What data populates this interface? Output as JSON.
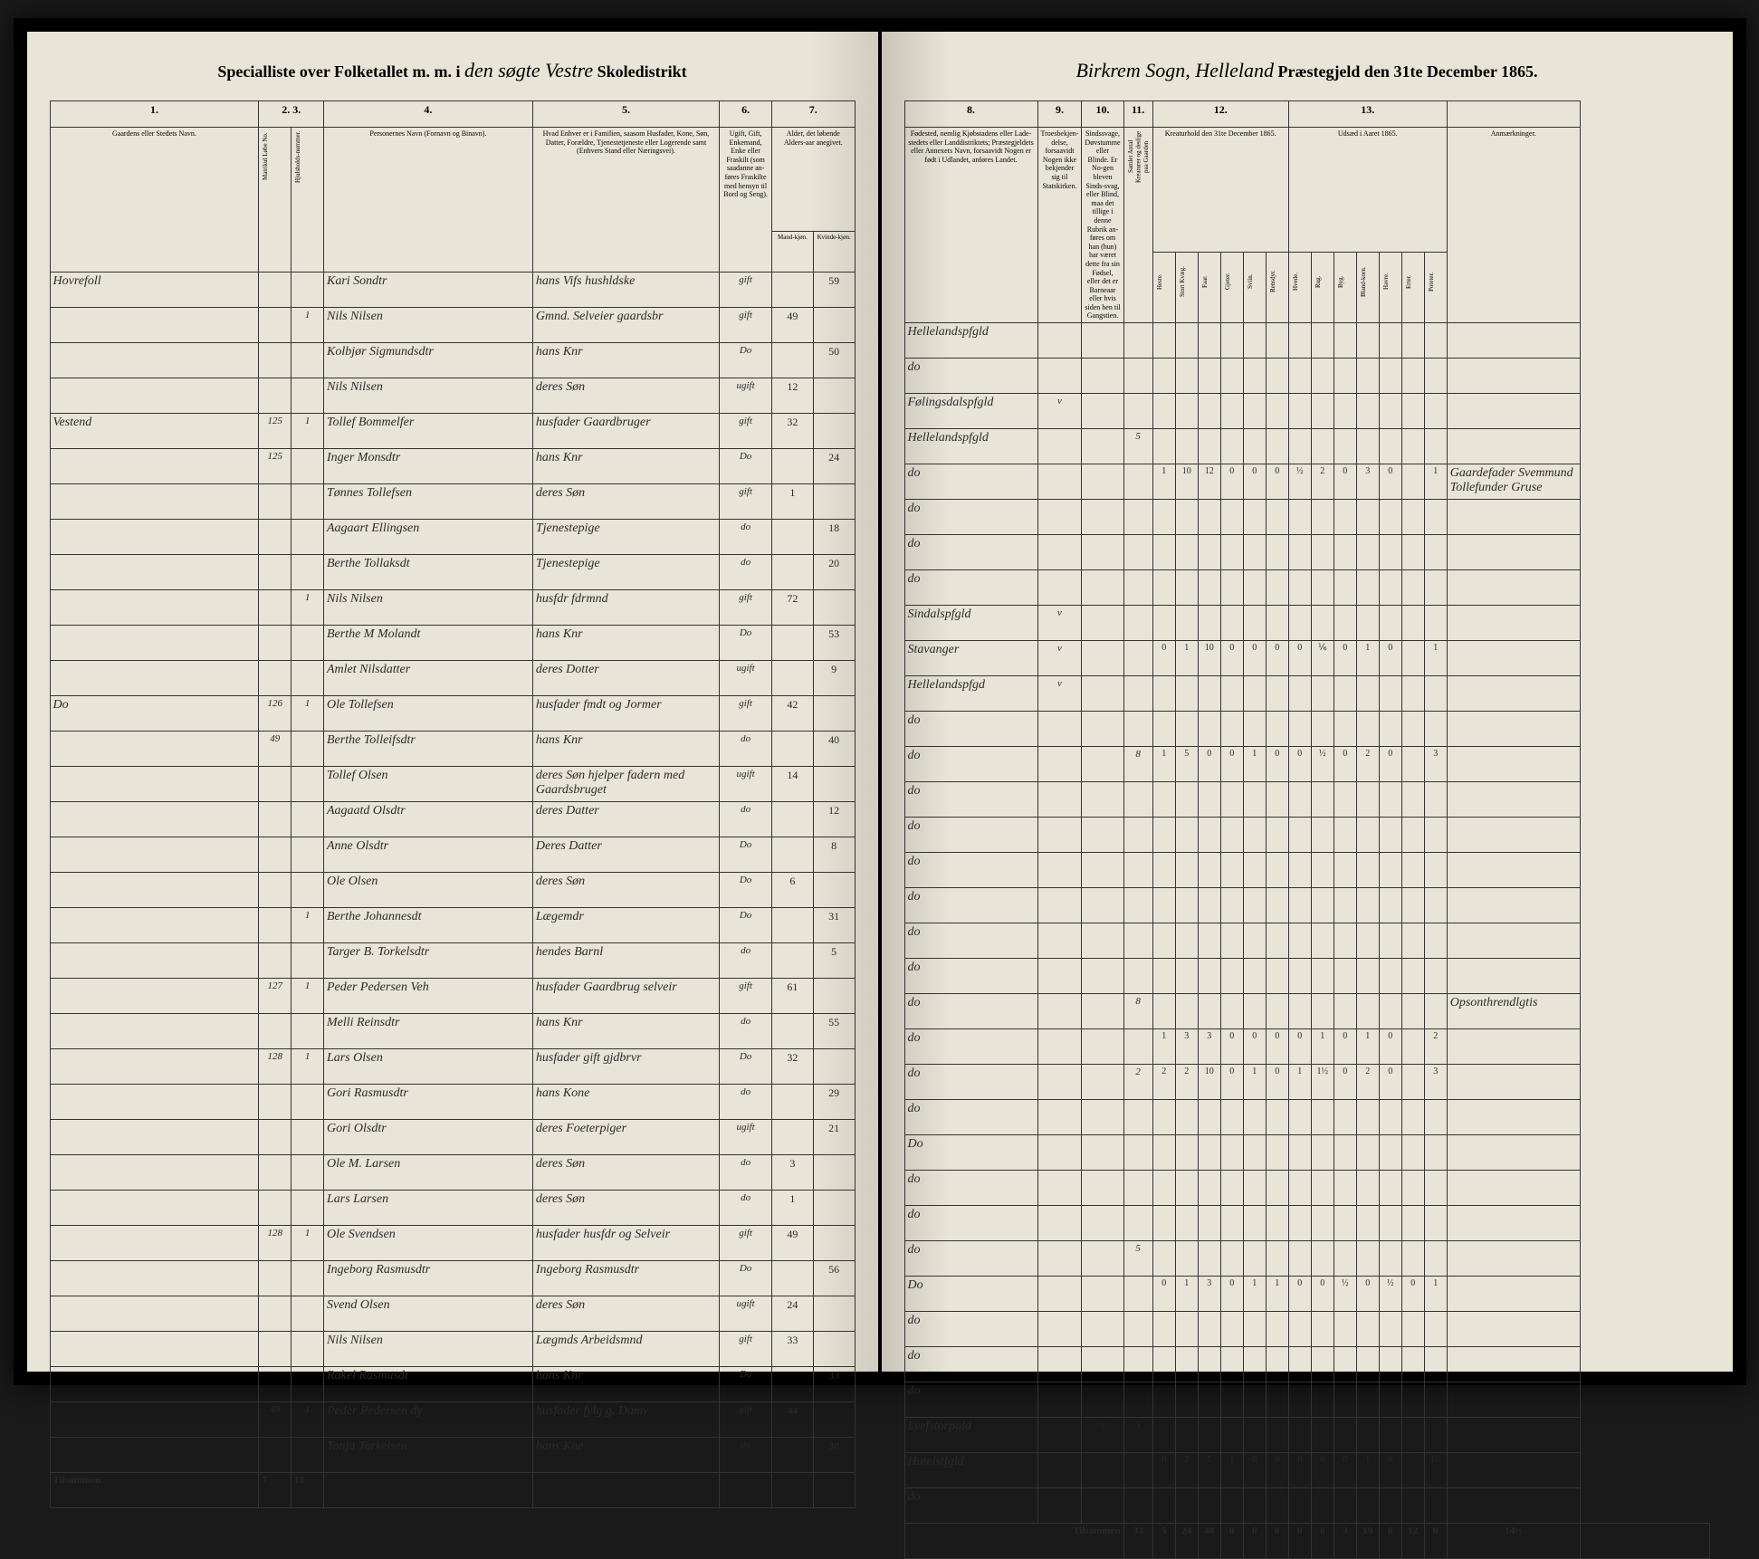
{
  "header": {
    "left_printed_1": "Specialliste over Folketallet m. m. i",
    "left_hand_1": "den søgte Vestre",
    "left_printed_2": "Skoledistrikt",
    "right_hand_1": "Birkrem Sogn, Helleland",
    "right_printed_1": "Præstegjeld den 31te December 1865."
  },
  "left_columns": {
    "c1": "1.",
    "c2": "2.",
    "c3": "3.",
    "c4": "4.",
    "c5": "5.",
    "c6": "6.",
    "c7": "7."
  },
  "left_headers": {
    "h1": "Gaardens eller Stedets\nNavn.",
    "h2a": "Matrikul Løbe No.",
    "h2b": "Hjulsholds-nummer.",
    "h4": "Personernes Navn (Fornavn og Binavn).",
    "h5": "Hvad Enhver er i Familien, saasom Husfader, Kone, Søn, Datter, Forældre, Tjenestetjeneste eller Logerende samt (Enhvers Stand eller Næringsvei).",
    "h6": "Ugift, Gift, Enkemand, Enke eller Fraskilt (som saadanne an-føres Fraskilte med hensyn til Bord og Seng).",
    "h7": "Alder, det løbende Alders-aar anegivet."
  },
  "left_subheaders": {
    "s7a": "Mand-kjøn.",
    "s7b": "Kvinde-kjøn."
  },
  "right_columns": {
    "c8": "8.",
    "c9": "9.",
    "c10": "10.",
    "c11": "11.",
    "c12": "12.",
    "c13": "13."
  },
  "right_headers": {
    "h8": "Fødested,\nnemlig Kjøbstadens eller Lade-stedets eller Landdistriktets; Præstegjeldets eller Annexets Navn, forsaavidt Nogen er født i Udlandet, anføres Landet.",
    "h9": "Troesbekjen-delse, forsaavidt Nogen ikke bekjender sig til Statskirken.",
    "h10": "Sindssvage, Døvstumme eller Blinde. Er No-gen bleven Sinds-svag, eller Blind, maa det tillige i denne Rubrik an-føres om han (hun) har været dette fra sin Fødsel, eller det er Barneaar eller hvis siden hen til Gangstien.",
    "h11": "Samlet Antal Kreaturer og deslige paa Gaarden",
    "h12": "Kreaturhold\nden 31te December 1865.",
    "h13": "Udsæd i\nAaret 1865.",
    "h14": "Anmærkninger."
  },
  "livestock_headers": [
    "Heste.",
    "Stort Kvæg.",
    "Faar.",
    "Gjeter.",
    "Sviin.",
    "Rensdyr."
  ],
  "crop_headers": [
    "Hvede.",
    "Rug.",
    "Byg.",
    "Bland-korn.",
    "Havre.",
    "Erter.",
    "Poteter."
  ],
  "rows": [
    {
      "farm": "Hovrefoll",
      "mat": "",
      "hh": "",
      "name": "Kari Sondtr",
      "status": "hans Vifs hushldske",
      "civil": "gift",
      "age_m": "",
      "age_f": "59",
      "place": "Hellelandspfgld",
      "rel": "",
      "ill": "",
      "c11": "",
      "live": [
        "",
        "",
        "",
        "",
        "",
        ""
      ],
      "crop": [
        "",
        "",
        "",
        "",
        "",
        "",
        ""
      ],
      "note": ""
    },
    {
      "farm": "",
      "mat": "",
      "hh": "1",
      "name": "Nils Nilsen",
      "status": "Gmnd. Selveier gaardsbr",
      "civil": "gift",
      "age_m": "49",
      "age_f": "",
      "place": "do",
      "rel": "",
      "ill": "",
      "c11": "",
      "live": [
        "",
        "",
        "",
        "",
        "",
        ""
      ],
      "crop": [
        "",
        "",
        "",
        "",
        "",
        "",
        ""
      ],
      "note": ""
    },
    {
      "farm": "",
      "mat": "",
      "hh": "",
      "name": "Kolbjør Sigmundsdtr",
      "status": "hans Knr",
      "civil": "Do",
      "age_m": "",
      "age_f": "50",
      "place": "Følingsdalspfgld",
      "rel": "v",
      "ill": "",
      "c11": "",
      "live": [
        "",
        "",
        "",
        "",
        "",
        ""
      ],
      "crop": [
        "",
        "",
        "",
        "",
        "",
        "",
        ""
      ],
      "note": ""
    },
    {
      "farm": "",
      "mat": "",
      "hh": "",
      "name": "Nils Nilsen",
      "status": "deres Søn",
      "civil": "ugift",
      "age_m": "12",
      "age_f": "",
      "place": "Hellelandspfgld",
      "rel": "",
      "ill": "",
      "c11": "5",
      "live": [
        "",
        "",
        "",
        "",
        "",
        ""
      ],
      "crop": [
        "",
        "",
        "",
        "",
        "",
        "",
        ""
      ],
      "note": ""
    },
    {
      "farm": "Vestend",
      "mat": "125",
      "hh": "1",
      "name": "Tollef Bommelfer",
      "status": "husfader Gaardbruger",
      "civil": "gift",
      "age_m": "32",
      "age_f": "",
      "place": "do",
      "rel": "",
      "ill": "",
      "c11": "",
      "live": [
        "1",
        "10",
        "12",
        "0",
        "0",
        "0"
      ],
      "crop": [
        "½",
        "2",
        "0",
        "3",
        "0",
        "",
        "1"
      ],
      "note": "Gaardefader Svemmund Tollefunder Gruse"
    },
    {
      "farm": "",
      "mat": "125",
      "hh": "",
      "name": "Inger Monsdtr",
      "status": "hans Knr",
      "civil": "Do",
      "age_m": "",
      "age_f": "24",
      "place": "do",
      "rel": "",
      "ill": "",
      "c11": "",
      "live": [
        "",
        "",
        "",
        "",
        "",
        ""
      ],
      "crop": [
        "",
        "",
        "",
        "",
        "",
        "",
        ""
      ],
      "note": ""
    },
    {
      "farm": "",
      "mat": "",
      "hh": "",
      "name": "Tønnes Tollefsen",
      "status": "deres Søn",
      "civil": "gift",
      "age_m": "1",
      "age_f": "",
      "place": "do",
      "rel": "",
      "ill": "",
      "c11": "",
      "live": [
        "",
        "",
        "",
        "",
        "",
        ""
      ],
      "crop": [
        "",
        "",
        "",
        "",
        "",
        "",
        ""
      ],
      "note": ""
    },
    {
      "farm": "",
      "mat": "",
      "hh": "",
      "name": "Aagaart Ellingsen",
      "status": "Tjenestepige",
      "civil": "do",
      "age_m": "",
      "age_f": "18",
      "place": "do",
      "rel": "",
      "ill": "",
      "c11": "",
      "live": [
        "",
        "",
        "",
        "",
        "",
        ""
      ],
      "crop": [
        "",
        "",
        "",
        "",
        "",
        "",
        ""
      ],
      "note": ""
    },
    {
      "farm": "",
      "mat": "",
      "hh": "",
      "name": "Berthe Tollaksdt",
      "status": "Tjenestepige",
      "civil": "do",
      "age_m": "",
      "age_f": "20",
      "place": "Sindalspfgld",
      "rel": "v",
      "ill": "",
      "c11": "",
      "live": [
        "",
        "",
        "",
        "",
        "",
        ""
      ],
      "crop": [
        "",
        "",
        "",
        "",
        "",
        "",
        ""
      ],
      "note": ""
    },
    {
      "farm": "",
      "mat": "",
      "hh": "1",
      "name": "Nils Nilsen",
      "status": "husfdr fdrmnd",
      "civil": "gift",
      "age_m": "72",
      "age_f": "",
      "place": "Stavanger",
      "rel": "v",
      "ill": "",
      "c11": "",
      "live": [
        "0",
        "1",
        "10",
        "0",
        "0",
        "0"
      ],
      "crop": [
        "0",
        "⅙",
        "0",
        "1",
        "0",
        "",
        "1"
      ],
      "note": ""
    },
    {
      "farm": "",
      "mat": "",
      "hh": "",
      "name": "Berthe M Molandt",
      "status": "hans Knr",
      "civil": "Do",
      "age_m": "",
      "age_f": "53",
      "place": "Hellelandspfgd",
      "rel": "v",
      "ill": "",
      "c11": "",
      "live": [
        "",
        "",
        "",
        "",
        "",
        ""
      ],
      "crop": [
        "",
        "",
        "",
        "",
        "",
        "",
        ""
      ],
      "note": ""
    },
    {
      "farm": "",
      "mat": "",
      "hh": "",
      "name": "Amlet Nilsdatter",
      "status": "deres Dotter",
      "civil": "ugift",
      "age_m": "",
      "age_f": "9",
      "place": "do",
      "rel": "",
      "ill": "",
      "c11": "",
      "live": [
        "",
        "",
        "",
        "",
        "",
        ""
      ],
      "crop": [
        "",
        "",
        "",
        "",
        "",
        "",
        ""
      ],
      "note": ""
    },
    {
      "farm": "Do",
      "mat": "126",
      "hh": "1",
      "name": "Ole Tollefsen",
      "status": "husfader fmdt og Jormer",
      "civil": "gift",
      "age_m": "42",
      "age_f": "",
      "place": "do",
      "rel": "",
      "ill": "",
      "c11": "8",
      "live": [
        "1",
        "5",
        "0",
        "0",
        "1",
        "0"
      ],
      "crop": [
        "0",
        "½",
        "0",
        "2",
        "0",
        "",
        "3"
      ],
      "note": ""
    },
    {
      "farm": "",
      "mat": "49",
      "hh": "",
      "name": "Berthe Tolleifsdtr",
      "status": "hans Knr",
      "civil": "do",
      "age_m": "",
      "age_f": "40",
      "place": "do",
      "rel": "",
      "ill": "",
      "c11": "",
      "live": [
        "",
        "",
        "",
        "",
        "",
        ""
      ],
      "crop": [
        "",
        "",
        "",
        "",
        "",
        "",
        ""
      ],
      "note": ""
    },
    {
      "farm": "",
      "mat": "",
      "hh": "",
      "name": "Tollef Olsen",
      "status": "deres Søn hjelper fadern med Gaardsbruget",
      "civil": "ugift",
      "age_m": "14",
      "age_f": "",
      "place": "do",
      "rel": "",
      "ill": "",
      "c11": "",
      "live": [
        "",
        "",
        "",
        "",
        "",
        ""
      ],
      "crop": [
        "",
        "",
        "",
        "",
        "",
        "",
        ""
      ],
      "note": ""
    },
    {
      "farm": "",
      "mat": "",
      "hh": "",
      "name": "Aagaatd Olsdtr",
      "status": "deres Datter",
      "civil": "do",
      "age_m": "",
      "age_f": "12",
      "place": "do",
      "rel": "",
      "ill": "",
      "c11": "",
      "live": [
        "",
        "",
        "",
        "",
        "",
        ""
      ],
      "crop": [
        "",
        "",
        "",
        "",
        "",
        "",
        ""
      ],
      "note": ""
    },
    {
      "farm": "",
      "mat": "",
      "hh": "",
      "name": "Anne Olsdtr",
      "status": "Deres Datter",
      "civil": "Do",
      "age_m": "",
      "age_f": "8",
      "place": "do",
      "rel": "",
      "ill": "",
      "c11": "",
      "live": [
        "",
        "",
        "",
        "",
        "",
        ""
      ],
      "crop": [
        "",
        "",
        "",
        "",
        "",
        "",
        ""
      ],
      "note": ""
    },
    {
      "farm": "",
      "mat": "",
      "hh": "",
      "name": "Ole Olsen",
      "status": "deres Søn",
      "civil": "Do",
      "age_m": "6",
      "age_f": "",
      "place": "do",
      "rel": "",
      "ill": "",
      "c11": "",
      "live": [
        "",
        "",
        "",
        "",
        "",
        ""
      ],
      "crop": [
        "",
        "",
        "",
        "",
        "",
        "",
        ""
      ],
      "note": ""
    },
    {
      "farm": "",
      "mat": "",
      "hh": "1",
      "name": "Berthe Johannesdt",
      "status": "Lægemdr",
      "civil": "Do",
      "age_m": "",
      "age_f": "31",
      "place": "do",
      "rel": "",
      "ill": "",
      "c11": "",
      "live": [
        "",
        "",
        "",
        "",
        "",
        ""
      ],
      "crop": [
        "",
        "",
        "",
        "",
        "",
        "",
        ""
      ],
      "note": ""
    },
    {
      "farm": "",
      "mat": "",
      "hh": "",
      "name": "Targer B. Torkelsdtr",
      "status": "hendes Barnl",
      "civil": "do",
      "age_m": "",
      "age_f": "5",
      "place": "do",
      "rel": "",
      "ill": "",
      "c11": "8",
      "live": [
        "",
        "",
        "",
        "",
        "",
        ""
      ],
      "crop": [
        "",
        "",
        "",
        "",
        "",
        "",
        ""
      ],
      "note": "Opsonthrendlgtis"
    },
    {
      "farm": "",
      "mat": "127",
      "hh": "1",
      "name": "Peder Pedersen Veh",
      "status": "husfader Gaardbrug selveir",
      "civil": "gift",
      "age_m": "61",
      "age_f": "",
      "place": "do",
      "rel": "",
      "ill": "",
      "c11": "",
      "live": [
        "1",
        "3",
        "3",
        "0",
        "0",
        "0"
      ],
      "crop": [
        "0",
        "1",
        "0",
        "1",
        "0",
        "",
        "2"
      ],
      "note": ""
    },
    {
      "farm": "",
      "mat": "",
      "hh": "",
      "name": "Melli Reinsdtr",
      "status": "hans Knr",
      "civil": "do",
      "age_m": "",
      "age_f": "55",
      "place": "do",
      "rel": "",
      "ill": "",
      "c11": "2",
      "live": [
        "2",
        "2",
        "10",
        "0",
        "1",
        "0"
      ],
      "crop": [
        "1",
        "1½",
        "0",
        "2",
        "0",
        "",
        "3"
      ],
      "note": ""
    },
    {
      "farm": "",
      "mat": "128",
      "hh": "1",
      "name": "Lars Olsen",
      "status": "husfader gift gjdbrvr",
      "civil": "Do",
      "age_m": "32",
      "age_f": "",
      "place": "do",
      "rel": "",
      "ill": "",
      "c11": "",
      "live": [
        "",
        "",
        "",
        "",
        "",
        ""
      ],
      "crop": [
        "",
        "",
        "",
        "",
        "",
        "",
        ""
      ],
      "note": ""
    },
    {
      "farm": "",
      "mat": "",
      "hh": "",
      "name": "Gori Rasmusdtr",
      "status": "hans Kone",
      "civil": "do",
      "age_m": "",
      "age_f": "29",
      "place": "Do",
      "rel": "",
      "ill": "",
      "c11": "",
      "live": [
        "",
        "",
        "",
        "",
        "",
        ""
      ],
      "crop": [
        "",
        "",
        "",
        "",
        "",
        "",
        ""
      ],
      "note": ""
    },
    {
      "farm": "",
      "mat": "",
      "hh": "",
      "name": "Gori Olsdtr",
      "status": "deres Foeterpiger",
      "civil": "ugift",
      "age_m": "",
      "age_f": "21",
      "place": "do",
      "rel": "",
      "ill": "",
      "c11": "",
      "live": [
        "",
        "",
        "",
        "",
        "",
        ""
      ],
      "crop": [
        "",
        "",
        "",
        "",
        "",
        "",
        ""
      ],
      "note": ""
    },
    {
      "farm": "",
      "mat": "",
      "hh": "",
      "name": "Ole M. Larsen",
      "status": "deres Søn",
      "civil": "do",
      "age_m": "3",
      "age_f": "",
      "place": "do",
      "rel": "",
      "ill": "",
      "c11": "",
      "live": [
        "",
        "",
        "",
        "",
        "",
        ""
      ],
      "crop": [
        "",
        "",
        "",
        "",
        "",
        "",
        ""
      ],
      "note": ""
    },
    {
      "farm": "",
      "mat": "",
      "hh": "",
      "name": "Lars Larsen",
      "status": "deres Søn",
      "civil": "do",
      "age_m": "1",
      "age_f": "",
      "place": "do",
      "rel": "",
      "ill": "",
      "c11": "5",
      "live": [
        "",
        "",
        "",
        "",
        "",
        ""
      ],
      "crop": [
        "",
        "",
        "",
        "",
        "",
        "",
        ""
      ],
      "note": ""
    },
    {
      "farm": "",
      "mat": "128",
      "hh": "1",
      "name": "Ole Svendsen",
      "status": "husfader husfdr og Selveir",
      "civil": "gift",
      "age_m": "49",
      "age_f": "",
      "place": "Do",
      "rel": "",
      "ill": "",
      "c11": "",
      "live": [
        "0",
        "1",
        "3",
        "0",
        "1",
        "1"
      ],
      "crop": [
        "0",
        "0",
        "½",
        "0",
        "½",
        "0",
        "1"
      ],
      "note": ""
    },
    {
      "farm": "",
      "mat": "",
      "hh": "",
      "name": "Ingeborg Rasmusdtr",
      "status": "Ingeborg Rasmusdtr",
      "civil": "Do",
      "age_m": "",
      "age_f": "56",
      "place": "do",
      "rel": "",
      "ill": "",
      "c11": "",
      "live": [
        "",
        "",
        "",
        "",
        "",
        ""
      ],
      "crop": [
        "",
        "",
        "",
        "",
        "",
        "",
        ""
      ],
      "note": ""
    },
    {
      "farm": "",
      "mat": "",
      "hh": "",
      "name": "Svend Olsen",
      "status": "deres Søn",
      "civil": "ugift",
      "age_m": "24",
      "age_f": "",
      "place": "do",
      "rel": "",
      "ill": "",
      "c11": "",
      "live": [
        "",
        "",
        "",
        "",
        "",
        ""
      ],
      "crop": [
        "",
        "",
        "",
        "",
        "",
        "",
        ""
      ],
      "note": ""
    },
    {
      "farm": "",
      "mat": "",
      "hh": "",
      "name": "Nils Nilsen",
      "status": "Lægmds Arbeidsmnd",
      "civil": "gift",
      "age_m": "33",
      "age_f": "",
      "place": "do",
      "rel": "",
      "ill": "",
      "c11": "",
      "live": [
        "",
        "",
        "",
        "",
        "",
        ""
      ],
      "crop": [
        "",
        "",
        "",
        "",
        "",
        "",
        ""
      ],
      "note": ""
    },
    {
      "farm": "",
      "mat": "",
      "hh": "",
      "name": "Rakel Rasmusdt",
      "status": "hans Knr",
      "civil": "Do",
      "age_m": "",
      "age_f": "33",
      "place": "Lyefstorpgld",
      "rel": "",
      "ill": "v",
      "c11": "5",
      "live": [
        "",
        "",
        "",
        "",
        "",
        ""
      ],
      "crop": [
        "",
        "",
        "",
        "",
        "",
        "",
        ""
      ],
      "note": ""
    },
    {
      "farm": "",
      "mat": "49",
      "hh": "1",
      "name": "Peder Pedersen dy",
      "status": "husfader fylg g. Damv",
      "civil": "gift",
      "age_m": "44",
      "age_f": "",
      "place": "Hatelstfgld",
      "rel": "",
      "ill": "",
      "c11": "",
      "live": [
        "0",
        "2",
        "5",
        "1",
        "0",
        "0"
      ],
      "crop": [
        "0",
        "0",
        "0",
        "1",
        "0",
        "",
        "1½"
      ],
      "note": ""
    },
    {
      "farm": "",
      "mat": "",
      "hh": "",
      "name": "Tonja Torkelsen",
      "status": "hans Kne",
      "civil": "do",
      "age_m": "",
      "age_f": "38",
      "place": "do",
      "rel": "",
      "ill": "",
      "c11": "",
      "live": [
        "",
        "",
        "",
        "",
        "",
        ""
      ],
      "crop": [
        "",
        "",
        "",
        "",
        "",
        "",
        ""
      ],
      "note": ""
    }
  ],
  "footer": {
    "label": "Tilsammen",
    "left_totals": [
      "7",
      "10"
    ],
    "right_totals": [
      "33",
      "5",
      "24",
      "48",
      "0",
      "0",
      "0",
      "0",
      "0",
      "3",
      "19",
      "0",
      "12",
      "0",
      "14½"
    ]
  }
}
